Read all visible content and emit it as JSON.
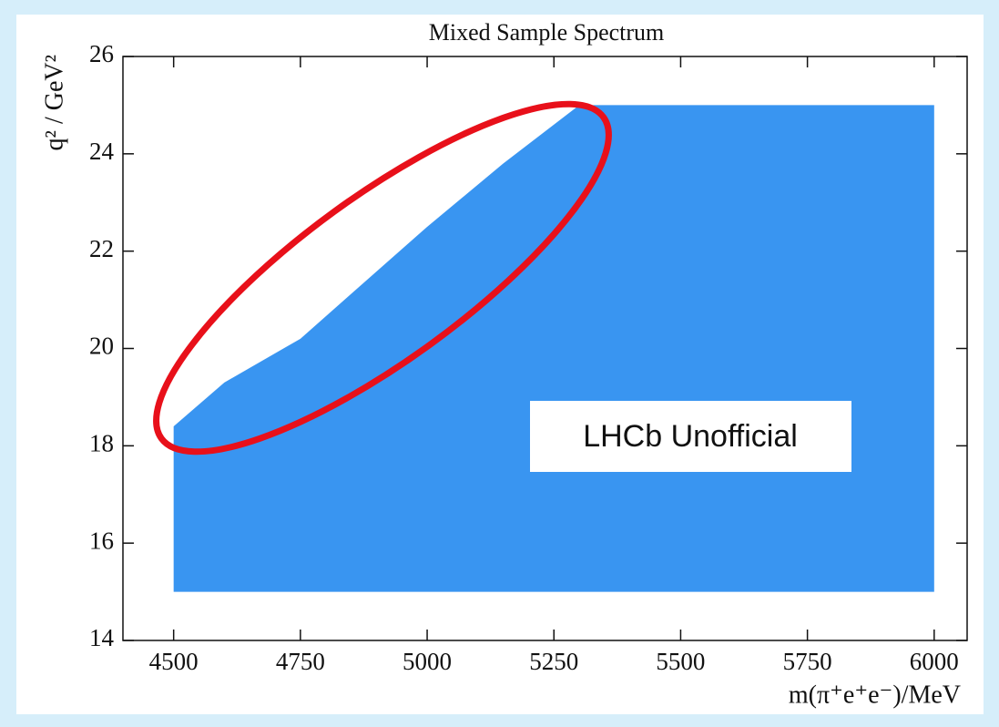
{
  "chart_data": {
    "type": "region",
    "title": "Mixed Sample Spectrum",
    "x_label": "m(π⁺e⁺e⁻)/MeV",
    "y_label": "q² / GeV²",
    "annotation": "LHCb Unofficial",
    "color": "#2e8ff0",
    "x": [
      4500,
      6000,
      6000,
      5300,
      5150,
      5000,
      4750,
      4600,
      4500
    ],
    "y": [
      15,
      15,
      25,
      25,
      23.8,
      22.5,
      20.2,
      19.3,
      18.4
    ],
    "xlim": [
      4400,
      6065
    ],
    "ylim": [
      14,
      26
    ],
    "xticks": [
      4500,
      4750,
      5000,
      5250,
      5500,
      5750,
      6000
    ],
    "yticks": [
      14,
      16,
      18,
      20,
      22,
      24,
      26
    ]
  }
}
